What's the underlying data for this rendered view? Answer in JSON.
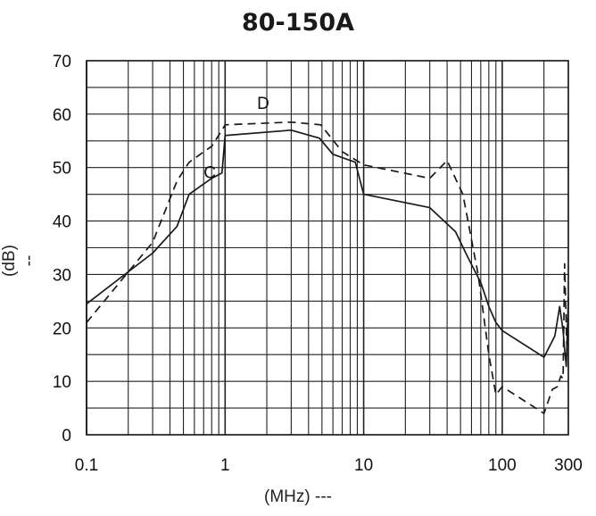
{
  "chart_data": {
    "type": "line",
    "title": "80-150A",
    "xlabel": "(MHz) ---",
    "ylabel": "(dB) --",
    "x_scale": "log",
    "xlim": [
      0.1,
      300
    ],
    "ylim": [
      0,
      70
    ],
    "grid": true,
    "x_ticks": [
      {
        "value": 0.1,
        "label": "0.1"
      },
      {
        "value": 1,
        "label": "1"
      },
      {
        "value": 10,
        "label": "10"
      },
      {
        "value": 100,
        "label": "100"
      },
      {
        "value": 300,
        "label": "300"
      }
    ],
    "y_ticks": [
      0,
      10,
      20,
      30,
      40,
      50,
      60,
      70
    ],
    "series": [
      {
        "name": "C",
        "style": "solid",
        "color": "#1a1a1a",
        "label_at": [
          0.7,
          48
        ],
        "x": [
          0.1,
          0.3,
          0.45,
          0.55,
          0.8,
          0.95,
          1.0,
          3.0,
          4.8,
          6.0,
          8.7,
          10.0,
          30.0,
          46.0,
          57.0,
          70.0,
          80.0,
          90.0,
          100.0,
          200.0,
          240.0,
          260.0,
          275.0,
          282.0,
          290.0,
          300.0
        ],
        "y": [
          24.5,
          34,
          39,
          45,
          48,
          49,
          56,
          57,
          55.5,
          52.5,
          51,
          45,
          42.5,
          38,
          33,
          28.5,
          24,
          21,
          19.5,
          14.5,
          18.5,
          24,
          19.5,
          16,
          12.8,
          25.5
        ]
      },
      {
        "name": "D",
        "style": "dashed",
        "color": "#1a1a1a",
        "label_at": [
          1.7,
          61
        ],
        "x": [
          0.1,
          0.3,
          0.45,
          0.55,
          0.8,
          0.95,
          1.0,
          3.0,
          4.9,
          7.0,
          10.0,
          30.0,
          40.0,
          52.0,
          67.0,
          80.0,
          90.0,
          100.0,
          200.0,
          230.0,
          250.0,
          265.0,
          275.0,
          282.0,
          292.0,
          300.0
        ],
        "y": [
          21,
          36,
          47.5,
          51,
          54,
          57,
          58,
          58.5,
          58,
          53,
          50.5,
          48,
          51.3,
          45,
          30,
          15,
          7.5,
          9,
          4,
          8.5,
          9,
          11,
          10.5,
          32,
          17,
          17
        ]
      }
    ]
  }
}
